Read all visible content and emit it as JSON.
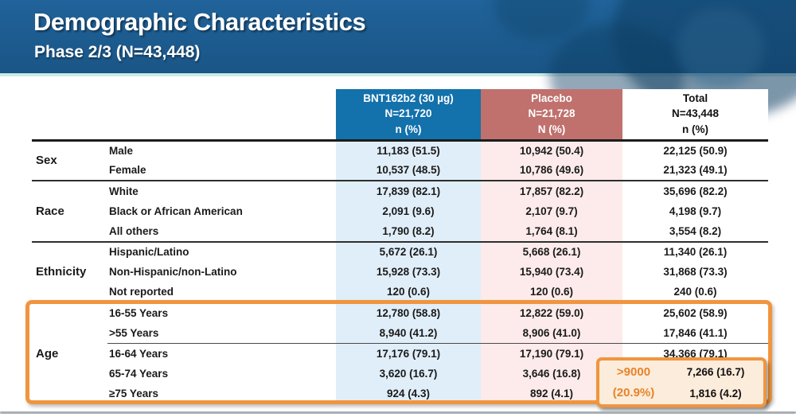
{
  "slide": {
    "title": "Demographic Characteristics",
    "subtitle": "Phase 2/3 (N=43,448)"
  },
  "table": {
    "columns": [
      {
        "label": "BNT162b2 (30 µg)",
        "n": "N=21,720",
        "unit": "n (%)"
      },
      {
        "label": "Placebo",
        "n": "N=21,728",
        "unit": "N (%)"
      },
      {
        "label": "Total",
        "n": "N=43,448",
        "unit": "n (%)"
      }
    ],
    "groups": [
      {
        "category": "Sex",
        "rows": [
          {
            "label": "Male",
            "bnt": "11,183 (51.5)",
            "placebo": "10,942 (50.4)",
            "total": "22,125 (50.9)"
          },
          {
            "label": "Female",
            "bnt": "10,537 (48.5)",
            "placebo": "10,786 (49.6)",
            "total": "21,323 (49.1)"
          }
        ]
      },
      {
        "category": "Race",
        "rows": [
          {
            "label": "White",
            "bnt": "17,839 (82.1)",
            "placebo": "17,857 (82.2)",
            "total": "35,696 (82.2)"
          },
          {
            "label": "Black or African American",
            "bnt": "2,091 (9.6)",
            "placebo": "2,107 (9.7)",
            "total": "4,198 (9.7)"
          },
          {
            "label": "All others",
            "bnt": "1,790 (8.2)",
            "placebo": "1,764 (8.1)",
            "total": "3,554 (8.2)"
          }
        ]
      },
      {
        "category": "Ethnicity",
        "rows": [
          {
            "label": "Hispanic/Latino",
            "bnt": "5,672 (26.1)",
            "placebo": "5,668 (26.1)",
            "total": "11,340 (26.1)"
          },
          {
            "label": "Non-Hispanic/non-Latino",
            "bnt": "15,928 (73.3)",
            "placebo": "15,940 (73.4)",
            "total": "31,868 (73.3)"
          },
          {
            "label": "Not reported",
            "bnt": "120 (0.6)",
            "placebo": "120 (0.6)",
            "total": "240 (0.6)"
          }
        ]
      },
      {
        "category": "Age",
        "highlighted": true,
        "rows": [
          {
            "label": "16-55 Years",
            "bnt": "12,780 (58.8)",
            "placebo": "12,822 (59.0)",
            "total": "25,602 (58.9)"
          },
          {
            "label": ">55 Years",
            "bnt": "8,940 (41.2)",
            "placebo": "8,906 (41.0)",
            "total": "17,846 (41.1)"
          },
          {
            "label": "16-64 Years",
            "divider": true,
            "bnt": "17,176 (79.1)",
            "placebo": "17,190 (79.1)",
            "total": "34,366 (79.1)"
          },
          {
            "label": "65-74 Years",
            "bnt": "3,620 (16.7)",
            "placebo": "3,646 (16.8)",
            "total": "7,266 (16.7)"
          },
          {
            "label": "≥75 Years",
            "bnt": "924 (4.3)",
            "placebo": "892 (4.1)",
            "total": "1,816 (4.2)"
          }
        ]
      }
    ],
    "callout": {
      "line1": ">9000",
      "line2": "(20.9%)"
    }
  },
  "colors": {
    "header_blue": "#20639a",
    "accent_teal": "#cde9e6",
    "bnt_blue": "#1371ab",
    "placebo_red": "#c0716d",
    "bnt_light": "#e0eef9",
    "placebo_light": "#fcebea",
    "highlight_orange": "#f0953f",
    "callout_bg": "#fcecdb",
    "callout_text": "#e8832a"
  }
}
